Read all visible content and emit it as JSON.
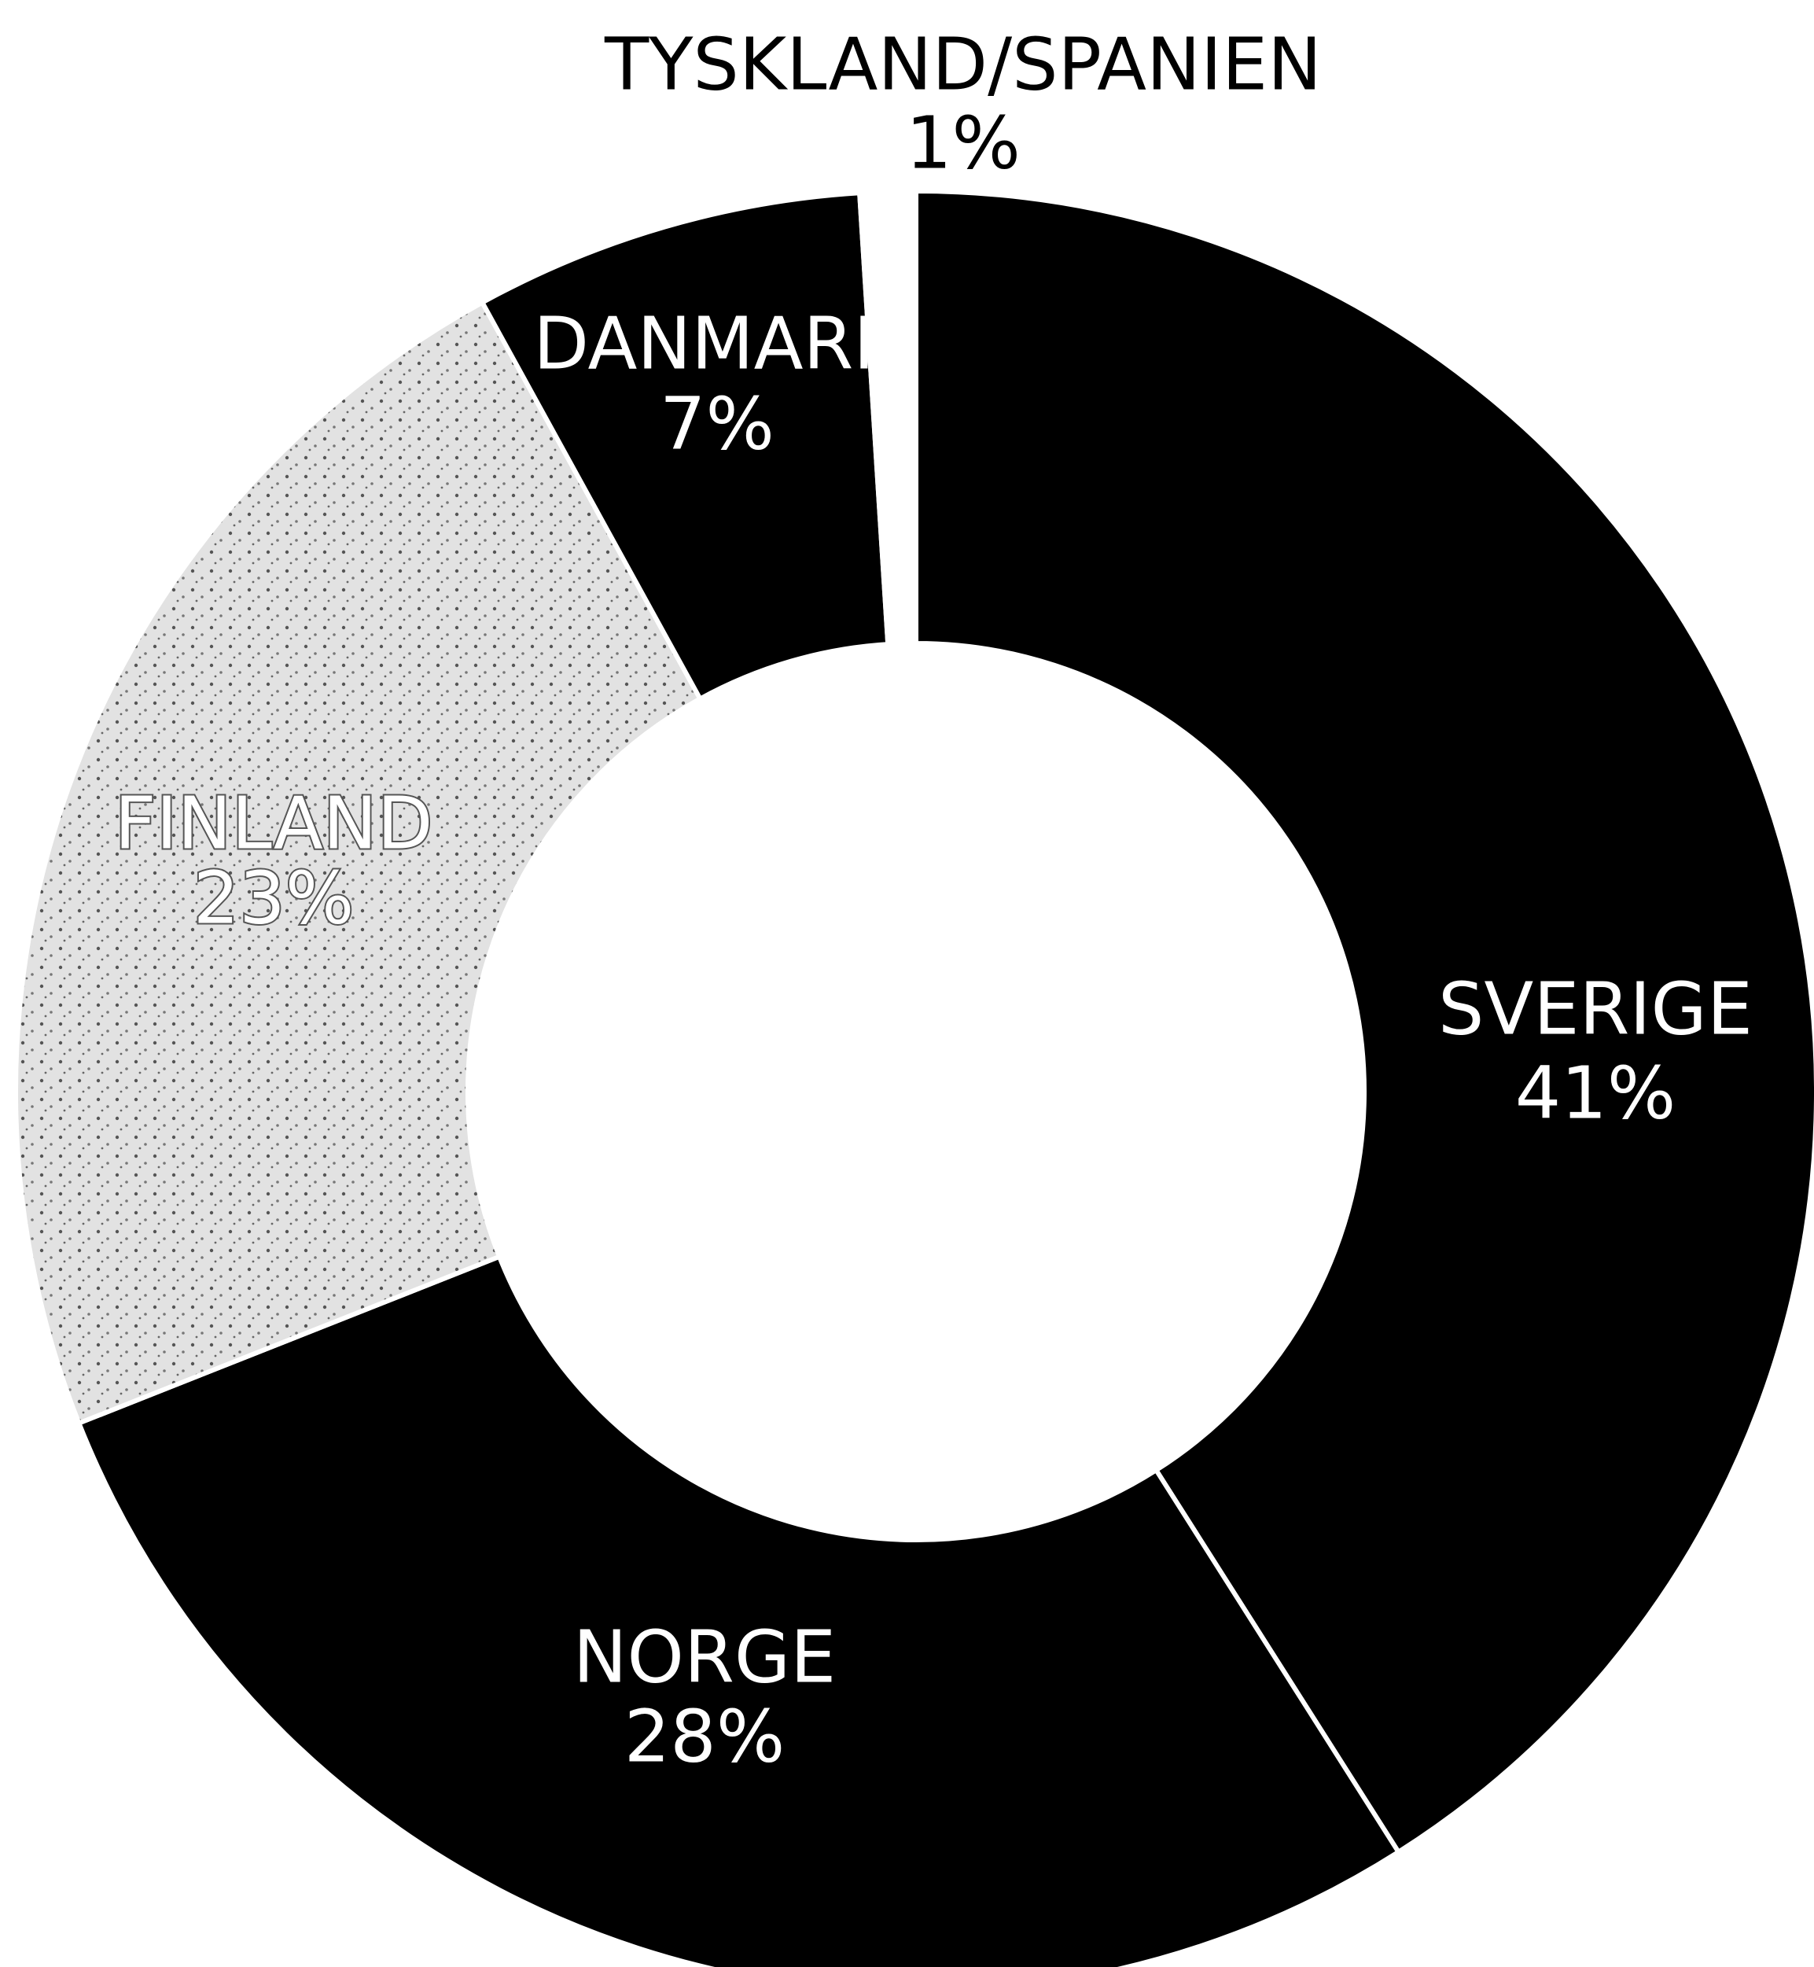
{
  "chart_data": {
    "type": "donut",
    "categories": [
      "SVERIGE",
      "NORGE",
      "FINLAND",
      "DANMARK",
      "TYSKLAND/SPANIEN"
    ],
    "values": [
      41,
      28,
      23,
      7,
      1
    ],
    "value_labels": [
      "41%",
      "28%",
      "23%",
      "7%",
      "1%"
    ],
    "colors": [
      "#000000",
      "#000000",
      "#dcdcdc",
      "#000000",
      "#ffffff"
    ]
  }
}
